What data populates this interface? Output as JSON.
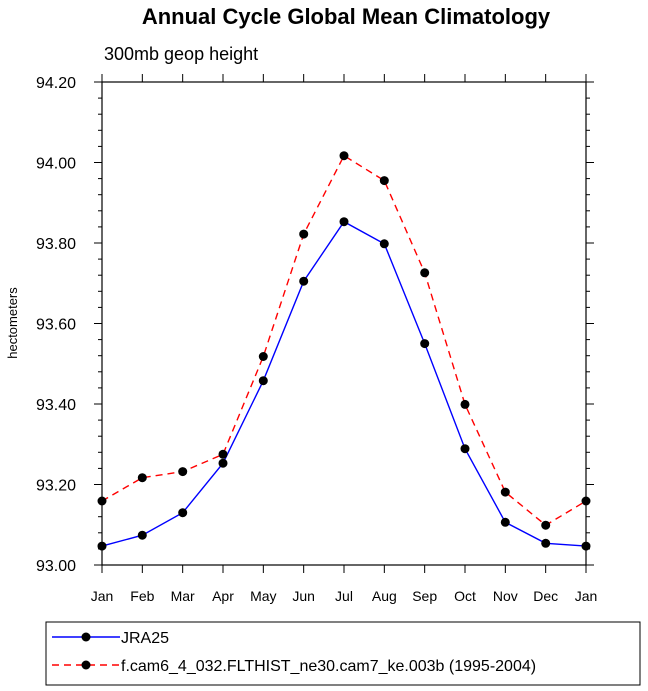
{
  "chart_data": {
    "type": "line",
    "title": "Annual Cycle Global Mean Climatology",
    "subtitle": "300mb geop height",
    "xlabel": "",
    "ylabel": "hectometers",
    "categories": [
      "Jan",
      "Feb",
      "Mar",
      "Apr",
      "May",
      "Jun",
      "Jul",
      "Aug",
      "Sep",
      "Oct",
      "Nov",
      "Dec",
      "Jan"
    ],
    "yticks": [
      "93.00",
      "93.20",
      "93.40",
      "93.60",
      "93.80",
      "94.00",
      "94.20"
    ],
    "ylim": [
      93.0,
      94.2
    ],
    "grid": false,
    "legend_position": "bottom",
    "series": [
      {
        "name": "JRA25",
        "color": "#0000ff",
        "style": "solid",
        "values": [
          93.047,
          93.074,
          93.13,
          93.253,
          93.458,
          93.705,
          93.853,
          93.798,
          93.55,
          93.289,
          93.106,
          93.054,
          93.047
        ]
      },
      {
        "name": "f.cam6_4_032.FLTHIST_ne30.cam7_ke.003b (1995-2004)",
        "color": "#ff0000",
        "style": "dashed",
        "values": [
          93.159,
          93.217,
          93.232,
          93.275,
          93.518,
          93.822,
          94.017,
          93.955,
          93.726,
          93.399,
          93.181,
          93.099,
          93.159
        ]
      }
    ]
  }
}
